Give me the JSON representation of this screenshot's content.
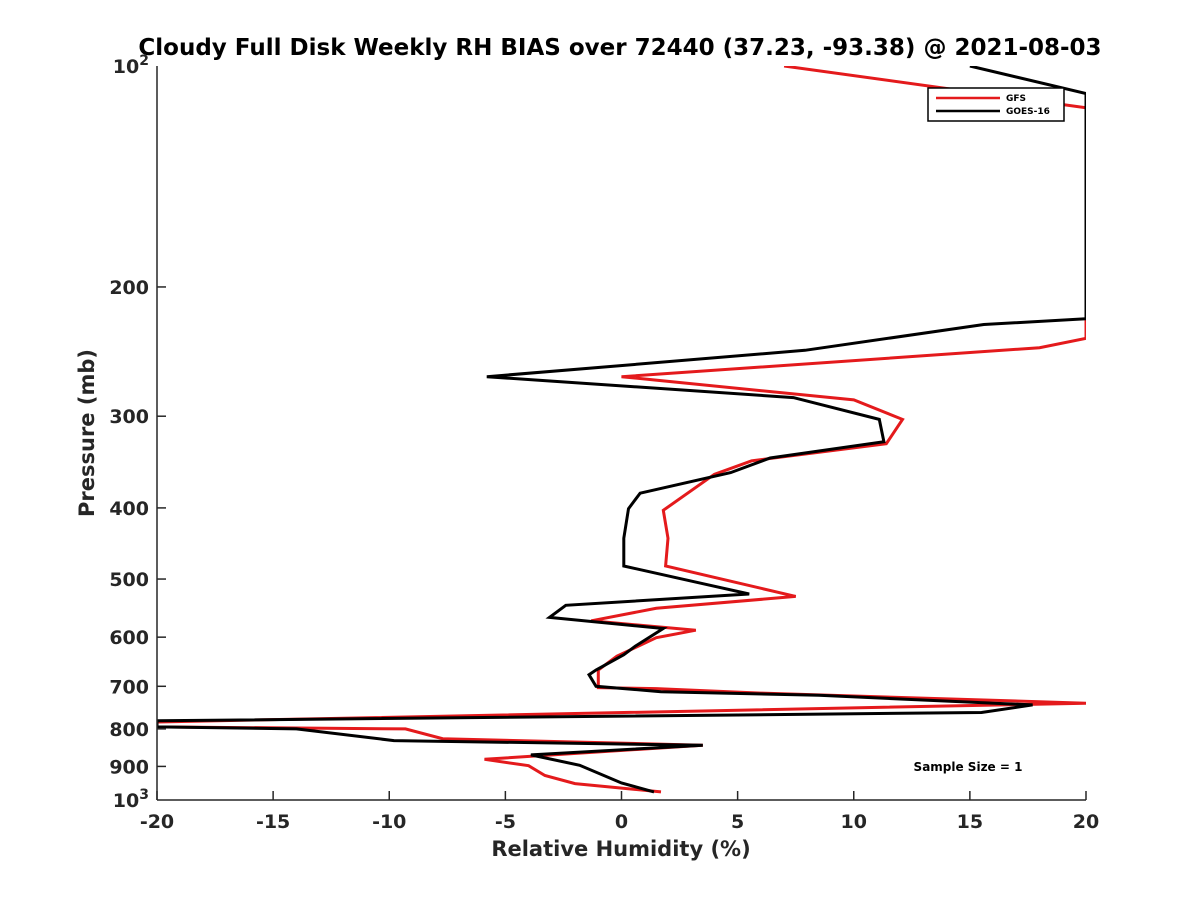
{
  "chart_data": {
    "type": "line",
    "title": "Cloudy Full Disk Weekly RH BIAS over 72440 (37.23, -93.38) @ 2021-08-03",
    "xlabel": "Relative Humidity (%)",
    "ylabel": "Pressure (mb)",
    "xlim": [
      -20,
      20
    ],
    "ylim": [
      100,
      1000
    ],
    "y_scale": "log",
    "y_reversed": true,
    "x_ticks": [
      -20,
      -15,
      -10,
      -5,
      0,
      5,
      10,
      15,
      20
    ],
    "x_tick_labels": [
      "-20",
      "-15",
      "-10",
      "-5",
      "0",
      "5",
      "10",
      "15",
      "20"
    ],
    "y_ticks": [
      200,
      300,
      400,
      500,
      600,
      700,
      800,
      900
    ],
    "y_tick_labels": [
      "200",
      "300",
      "400",
      "500",
      "600",
      "700",
      "800",
      "900"
    ],
    "y_decade_labels": [
      {
        "value": 100,
        "base": "10",
        "exp": "2"
      },
      {
        "value": 1000,
        "base": "10",
        "exp": "3"
      }
    ],
    "grid": false,
    "legend_position": "top-right",
    "series": [
      {
        "name": "GFS",
        "color": "#e41a1c",
        "points": [
          [
            7,
            100
          ],
          [
            20,
            114
          ],
          [
            20,
            235
          ],
          [
            18,
            242
          ],
          [
            0,
            265
          ],
          [
            10,
            285
          ],
          [
            12.1,
            303
          ],
          [
            11.4,
            327
          ],
          [
            5.6,
            345
          ],
          [
            4,
            360
          ],
          [
            1.8,
            403
          ],
          [
            2,
            440
          ],
          [
            1.9,
            480
          ],
          [
            7.5,
            528
          ],
          [
            1.5,
            548
          ],
          [
            -1.3,
            570
          ],
          [
            3.2,
            587
          ],
          [
            1.5,
            601
          ],
          [
            -0.2,
            637
          ],
          [
            -1,
            665
          ],
          [
            -1,
            703
          ],
          [
            1.5,
            705
          ],
          [
            6,
            715
          ],
          [
            20,
            738
          ],
          [
            -20,
            783
          ],
          [
            -20,
            795
          ],
          [
            -9.3,
            800
          ],
          [
            -7.7,
            825
          ],
          [
            3.5,
            842
          ],
          [
            -5.9,
            880
          ],
          [
            -4,
            898
          ],
          [
            -3.3,
            926
          ],
          [
            -2,
            950
          ],
          [
            1.7,
            975
          ]
        ]
      },
      {
        "name": "GOES-16",
        "color": "#000000",
        "points": [
          [
            15,
            100
          ],
          [
            20,
            109
          ],
          [
            20,
            221
          ],
          [
            15.6,
            225
          ],
          [
            7.9,
            244
          ],
          [
            -5.8,
            265
          ],
          [
            7.4,
            283
          ],
          [
            11.1,
            303
          ],
          [
            11.3,
            325
          ],
          [
            6.4,
            342
          ],
          [
            4.7,
            358
          ],
          [
            0.8,
            382
          ],
          [
            0.3,
            401
          ],
          [
            0.1,
            440
          ],
          [
            0.1,
            480
          ],
          [
            3.7,
            509
          ],
          [
            5.5,
            524
          ],
          [
            -2.4,
            543
          ],
          [
            -3.1,
            564
          ],
          [
            1.8,
            584
          ],
          [
            0.6,
            617
          ],
          [
            0.1,
            634
          ],
          [
            -1.1,
            665
          ],
          [
            -1.4,
            675
          ],
          [
            -1.1,
            700
          ],
          [
            1.7,
            712
          ],
          [
            8.5,
            720
          ],
          [
            17.7,
            742
          ],
          [
            15.5,
            760
          ],
          [
            -20,
            780
          ],
          [
            -20,
            795
          ],
          [
            -14,
            800
          ],
          [
            -9.8,
            830
          ],
          [
            3.5,
            842
          ],
          [
            -3.9,
            868
          ],
          [
            -1.8,
            897
          ],
          [
            0,
            948
          ],
          [
            1.4,
            975
          ]
        ]
      }
    ],
    "annotations": [
      "Sample Size = 1"
    ]
  }
}
